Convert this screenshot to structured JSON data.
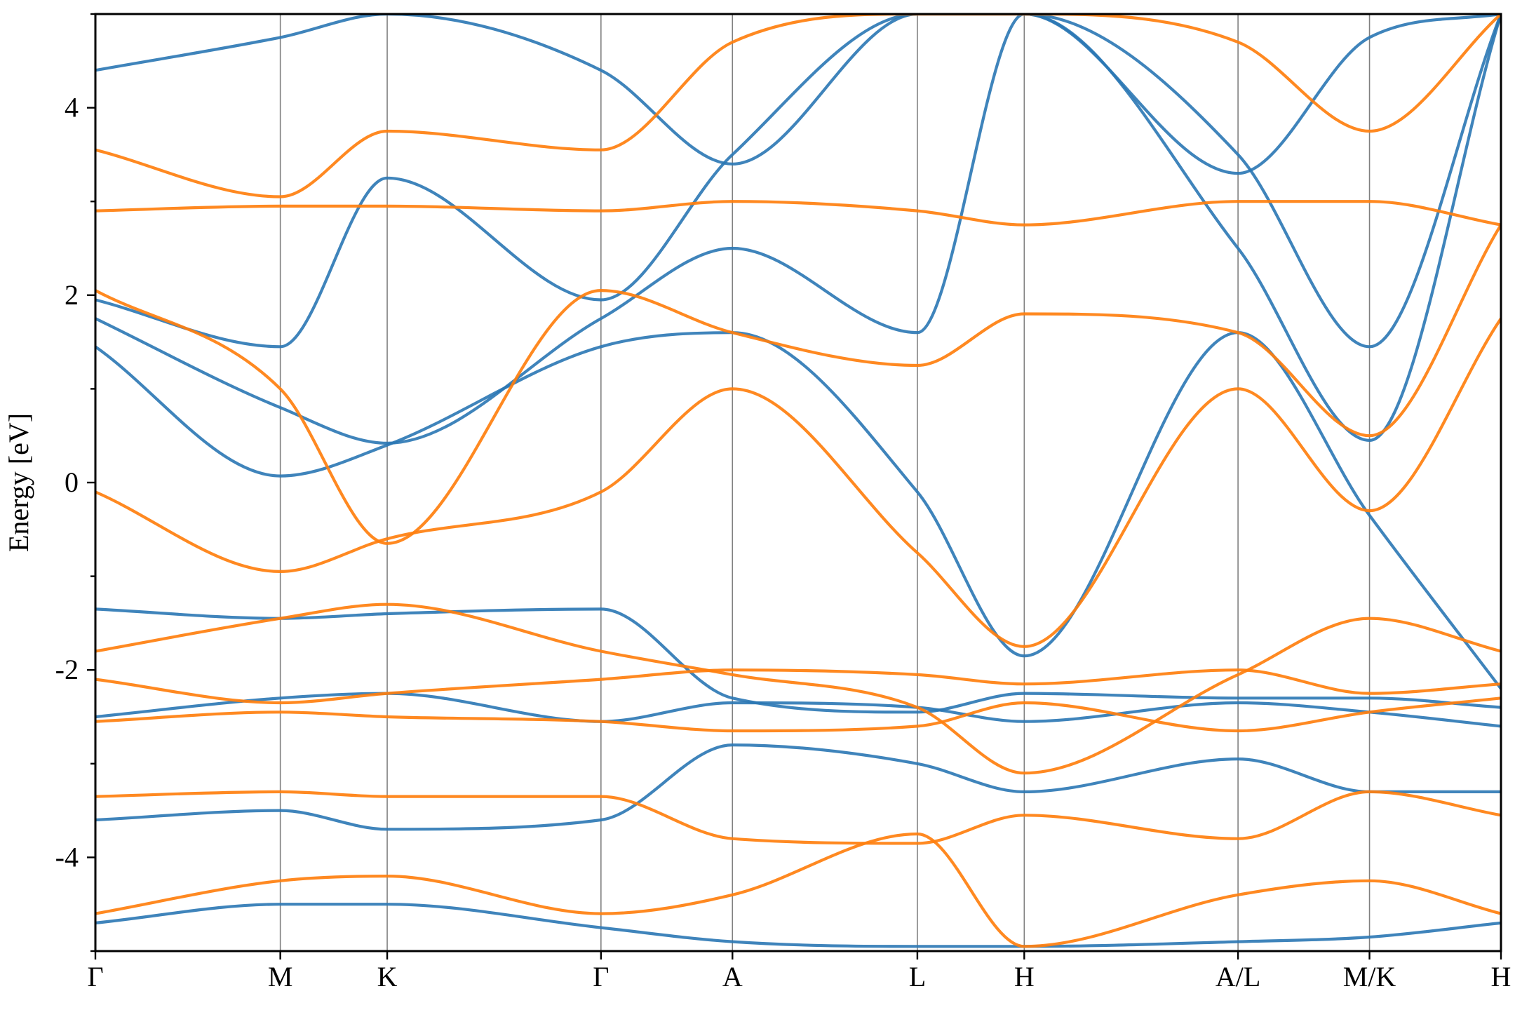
{
  "chart_data": {
    "type": "line",
    "title": "",
    "ylabel": "Energy [eV]",
    "xlabel": "",
    "ylim": [
      -5,
      5
    ],
    "yticks": [
      -4,
      -2,
      0,
      2,
      4
    ],
    "k_labels": [
      "Γ",
      "M",
      "K",
      "Γ",
      "A",
      "L",
      "H",
      "A/L",
      "M/K",
      "H"
    ],
    "k_positions": [
      0,
      1.73,
      2.73,
      4.73,
      5.96,
      7.69,
      8.69,
      10.69,
      11.92,
      13.15
    ],
    "grid": false,
    "series": [
      {
        "color": "#2a77b4",
        "bands": [
          [
            -4.7,
            -4.5,
            -4.5,
            -4.75,
            -4.9,
            -4.95,
            -4.95,
            -4.9,
            -4.85,
            -4.7
          ],
          [
            -3.6,
            -3.5,
            -3.7,
            -3.6,
            -2.8,
            -3.0,
            -3.3,
            -2.95,
            -3.3,
            -3.3
          ],
          [
            -2.5,
            -2.3,
            -2.25,
            -2.55,
            -2.35,
            -2.4,
            -2.55,
            -2.35,
            -2.45,
            -2.6
          ],
          [
            -1.35,
            -1.45,
            -1.4,
            -1.35,
            -2.3,
            -2.45,
            -2.25,
            -2.3,
            -2.3,
            -2.4
          ],
          [
            1.45,
            0.07,
            0.4,
            1.45,
            1.6,
            -0.1,
            -1.85,
            1.6,
            -0.35,
            -2.2
          ],
          [
            1.75,
            0.8,
            0.42,
            1.75,
            2.5,
            1.6,
            5.0,
            2.5,
            0.45,
            5.0
          ],
          [
            1.95,
            1.45,
            3.25,
            1.95,
            3.5,
            5.0,
            5.0,
            3.5,
            1.45,
            5.0
          ],
          [
            4.4,
            4.75,
            5.0,
            4.4,
            3.4,
            5.0,
            5.0,
            3.3,
            4.75,
            5.0
          ]
        ]
      },
      {
        "color": "#ff7f0e",
        "bands": [
          [
            -4.6,
            -4.25,
            -4.2,
            -4.6,
            -4.4,
            -3.75,
            -4.95,
            -4.4,
            -4.25,
            -4.6
          ],
          [
            -3.35,
            -3.3,
            -3.35,
            -3.35,
            -3.8,
            -3.85,
            -3.55,
            -3.8,
            -3.3,
            -3.55
          ],
          [
            -2.55,
            -2.45,
            -2.5,
            -2.55,
            -2.65,
            -2.6,
            -2.35,
            -2.65,
            -2.45,
            -2.3
          ],
          [
            -2.1,
            -2.35,
            -2.25,
            -2.1,
            -2.0,
            -2.05,
            -2.15,
            -2.0,
            -2.25,
            -2.15
          ],
          [
            -1.8,
            -1.45,
            -1.3,
            -1.8,
            -2.05,
            -2.4,
            -3.1,
            -2.05,
            -1.45,
            -1.8
          ],
          [
            -0.1,
            -0.95,
            -0.6,
            -0.1,
            1.0,
            -0.75,
            -1.75,
            1.0,
            -0.3,
            1.75
          ],
          [
            2.05,
            1.0,
            -0.65,
            2.05,
            1.6,
            1.25,
            1.8,
            1.6,
            0.5,
            2.75
          ],
          [
            2.9,
            2.95,
            2.95,
            2.9,
            3.0,
            2.9,
            2.75,
            3.0,
            3.0,
            2.75
          ],
          [
            3.55,
            3.05,
            3.75,
            3.55,
            4.7,
            5.0,
            5.0,
            4.7,
            3.75,
            5.0
          ]
        ]
      }
    ]
  }
}
